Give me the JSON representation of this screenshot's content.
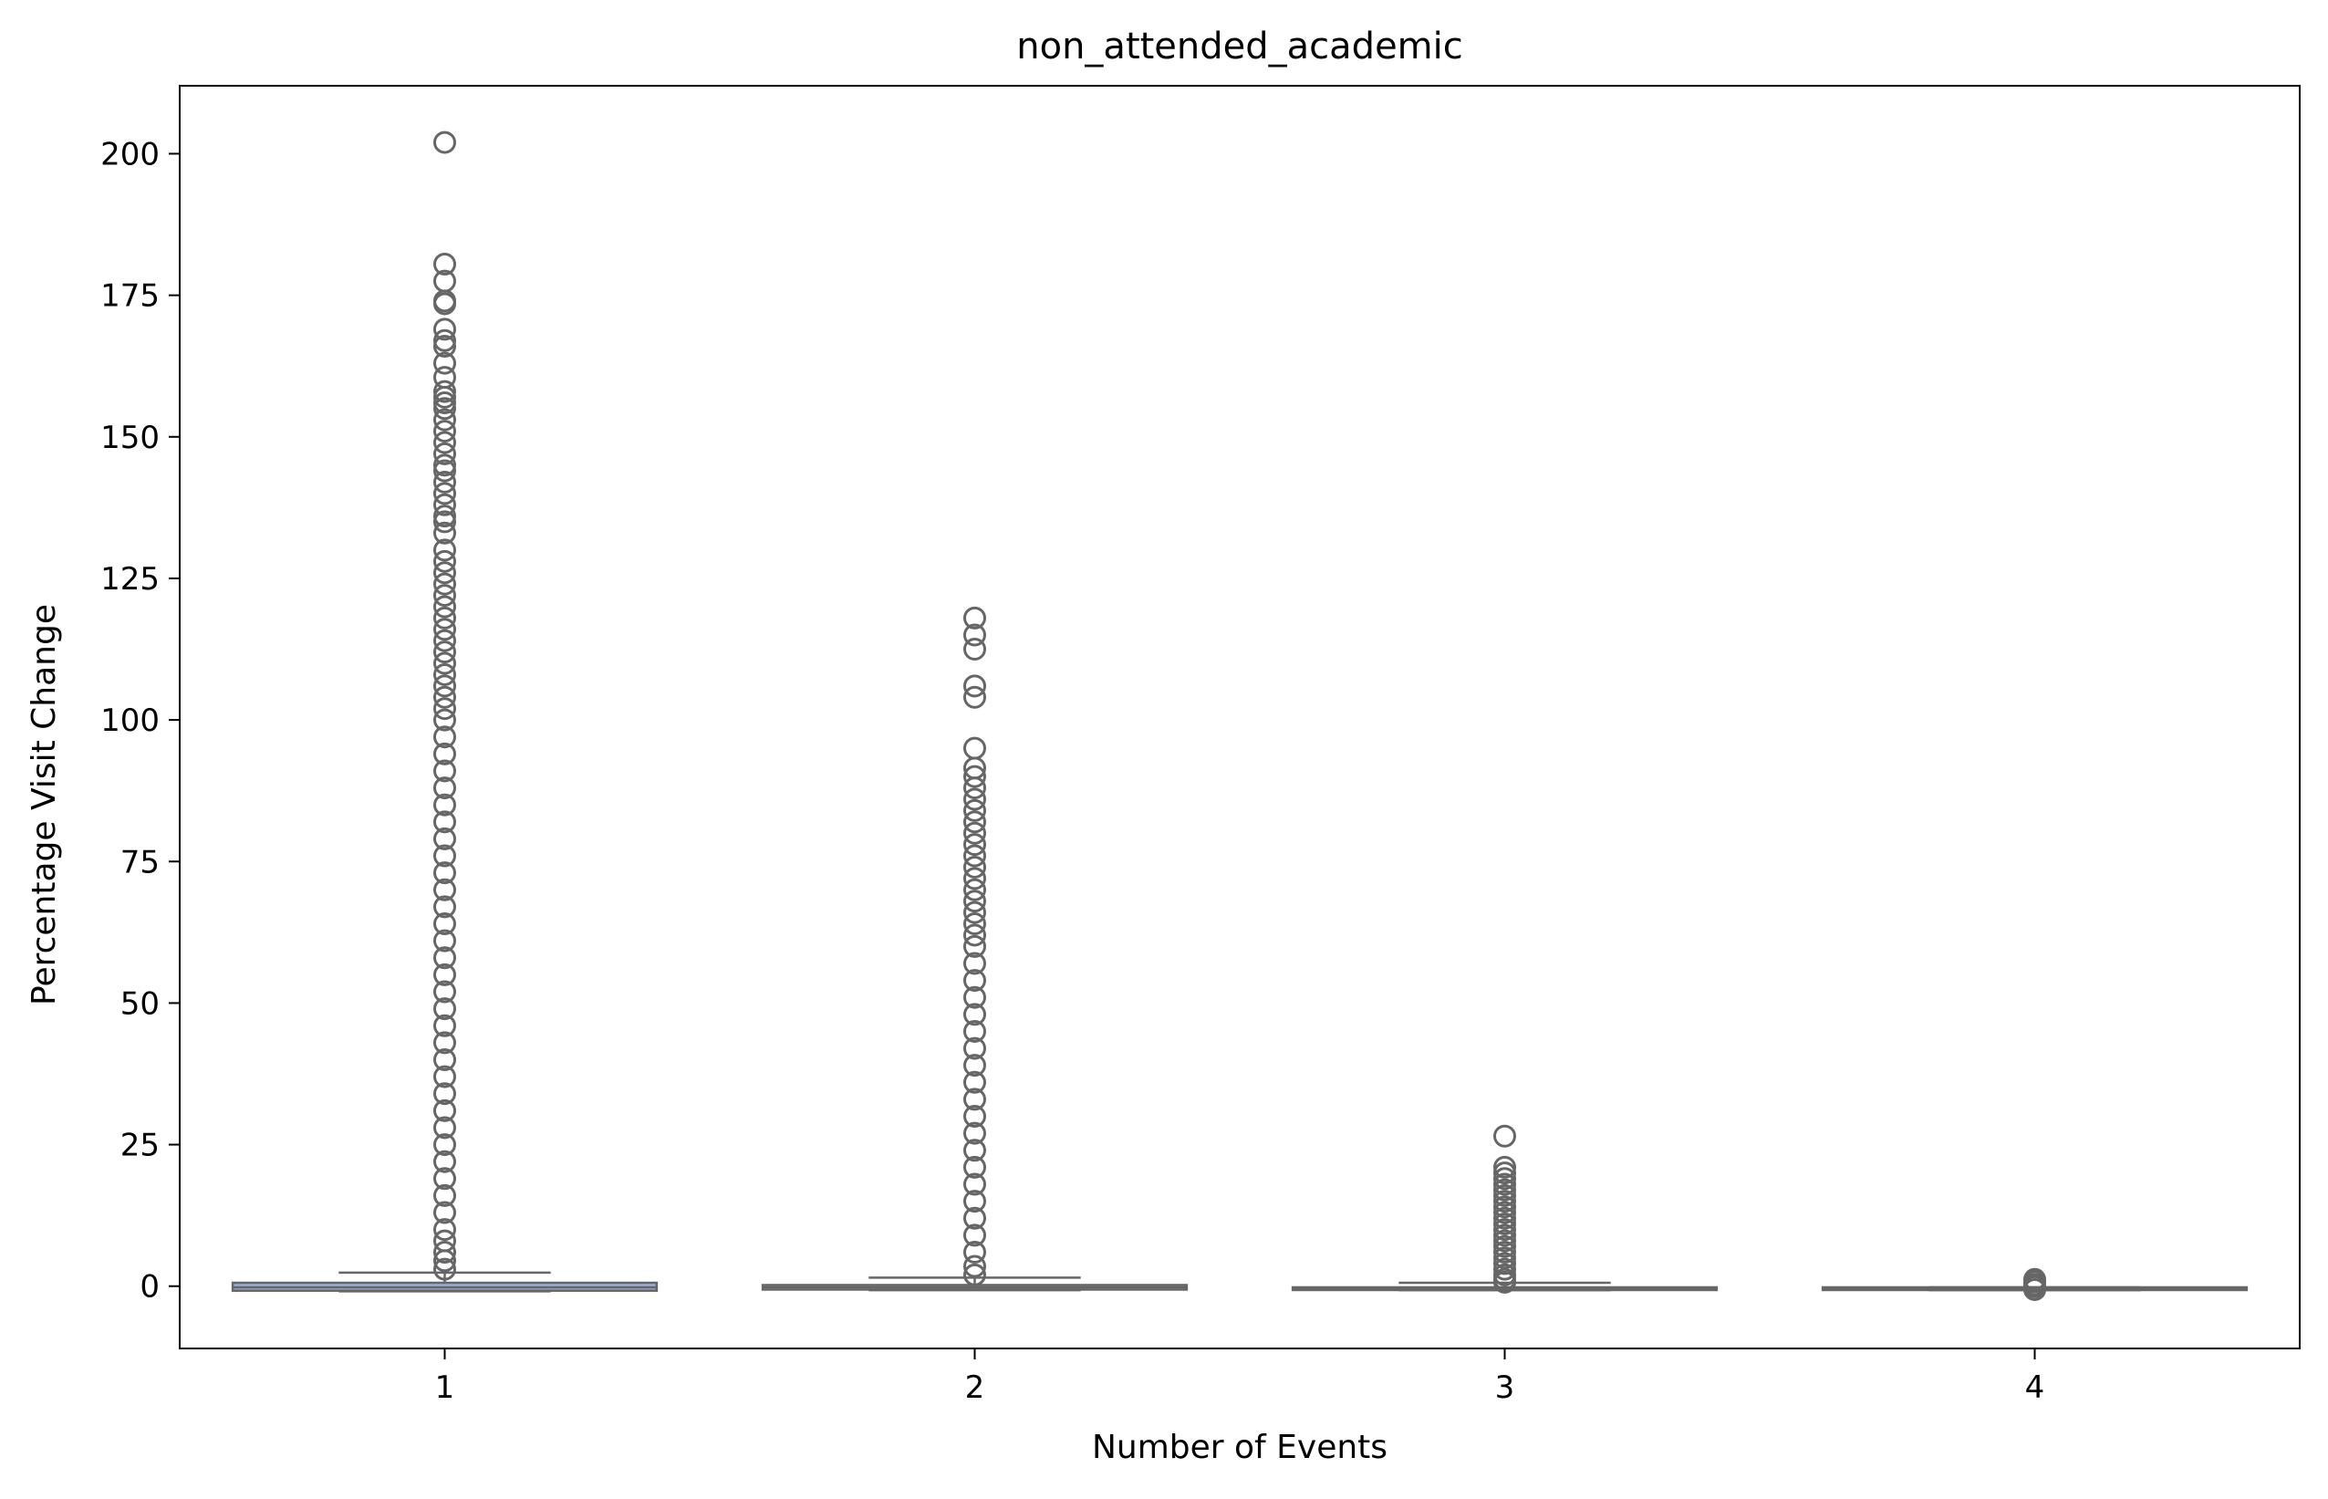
{
  "chart_data": {
    "type": "box",
    "title": "non_attended_academic",
    "xlabel": "Number of Events",
    "ylabel": "Percentage Visit Change",
    "categories": [
      "1",
      "2",
      "3",
      "4"
    ],
    "ylim": [
      -11,
      212
    ],
    "yticks": [
      0,
      25,
      50,
      75,
      100,
      125,
      150,
      175,
      200
    ],
    "ytick_labels": [
      "0",
      "25",
      "50",
      "75",
      "100",
      "125",
      "150",
      "175",
      "200"
    ],
    "grid": false,
    "legend": "none",
    "colors": {
      "box_edge": "#666666",
      "box_fill_1": "#9aaedb",
      "box_fill": "#aab8e0",
      "axes": "#000000"
    },
    "boxes": [
      {
        "category": "1",
        "q1": -0.8,
        "median": -0.2,
        "q3": 0.6,
        "whisker_low": -0.9,
        "whisker_high": 2.4,
        "outliers": [
          202,
          180.5,
          177.5,
          174,
          173.5,
          169,
          167,
          166,
          163,
          160.5,
          158,
          157,
          156,
          155,
          153,
          151,
          149,
          147,
          145,
          144,
          142,
          140,
          138,
          136,
          135,
          133,
          130,
          128,
          126,
          124,
          122,
          120,
          118,
          116,
          114,
          112,
          110,
          108,
          106,
          104,
          102,
          100,
          97,
          94,
          91,
          88,
          85,
          82,
          79,
          76,
          73,
          70,
          67,
          64,
          61,
          58,
          55,
          52,
          49,
          46,
          43,
          40,
          37,
          34,
          31,
          28,
          25,
          22,
          19,
          16,
          13,
          10,
          8,
          6,
          4.5,
          3
        ]
      },
      {
        "category": "2",
        "q1": -0.6,
        "median": -0.2,
        "q3": 0.2,
        "whisker_low": -0.7,
        "whisker_high": 1.5,
        "outliers": [
          118,
          115,
          112.5,
          106,
          104,
          95,
          91.5,
          90,
          88,
          86,
          84,
          82,
          80,
          78,
          76,
          74,
          72,
          70,
          68,
          66,
          64,
          62,
          60,
          57,
          54,
          51,
          48,
          45,
          42,
          39,
          36,
          33,
          30,
          27,
          24,
          21,
          18,
          15,
          12,
          9,
          6,
          3.5,
          2
        ]
      },
      {
        "category": "3",
        "q1": -0.6,
        "median": -0.4,
        "q3": -0.2,
        "whisker_low": -0.7,
        "whisker_high": 0.6,
        "outliers": [
          26.5,
          21,
          20,
          19,
          18,
          17,
          16,
          15,
          14,
          13,
          12,
          11,
          10,
          9,
          8,
          7,
          6,
          5,
          4,
          3,
          2,
          1.2,
          0.7
        ]
      },
      {
        "category": "4",
        "q1": -0.6,
        "median": -0.4,
        "q3": -0.2,
        "whisker_low": -0.7,
        "whisker_high": -0.2,
        "outliers": [
          1.2,
          0.8,
          0.3,
          -0.1,
          -0.6
        ]
      }
    ]
  }
}
